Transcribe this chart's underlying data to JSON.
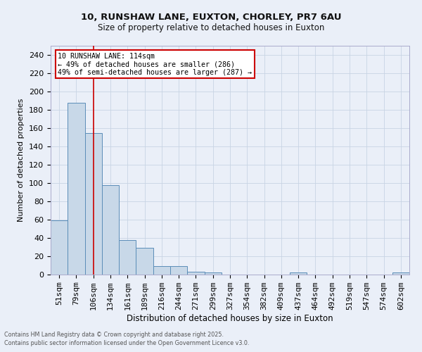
{
  "title1": "10, RUNSHAW LANE, EUXTON, CHORLEY, PR7 6AU",
  "title2": "Size of property relative to detached houses in Euxton",
  "xlabel": "Distribution of detached houses by size in Euxton",
  "ylabel": "Number of detached properties",
  "categories": [
    "51sqm",
    "79sqm",
    "106sqm",
    "134sqm",
    "161sqm",
    "189sqm",
    "216sqm",
    "244sqm",
    "271sqm",
    "299sqm",
    "327sqm",
    "354sqm",
    "382sqm",
    "409sqm",
    "437sqm",
    "464sqm",
    "492sqm",
    "519sqm",
    "547sqm",
    "574sqm",
    "602sqm"
  ],
  "values": [
    59,
    188,
    155,
    98,
    38,
    29,
    9,
    9,
    3,
    2,
    0,
    0,
    0,
    0,
    2,
    0,
    0,
    0,
    0,
    0,
    2
  ],
  "bar_color": "#c8d8e8",
  "bar_edge_color": "#5b8db8",
  "bar_linewidth": 0.7,
  "grid_color": "#c8d4e4",
  "background_color": "#eaeff8",
  "vline_x": 2.0,
  "vline_color": "#cc0000",
  "annotation_line1": "10 RUNSHAW LANE: 114sqm",
  "annotation_line2": "← 49% of detached houses are smaller (286)",
  "annotation_line3": "49% of semi-detached houses are larger (287) →",
  "annotation_box_color": "#ffffff",
  "annotation_border_color": "#cc0000",
  "ylim": [
    0,
    250
  ],
  "yticks": [
    0,
    20,
    40,
    60,
    80,
    100,
    120,
    140,
    160,
    180,
    200,
    220,
    240
  ],
  "footer1": "Contains HM Land Registry data © Crown copyright and database right 2025.",
  "footer2": "Contains public sector information licensed under the Open Government Licence v3.0."
}
